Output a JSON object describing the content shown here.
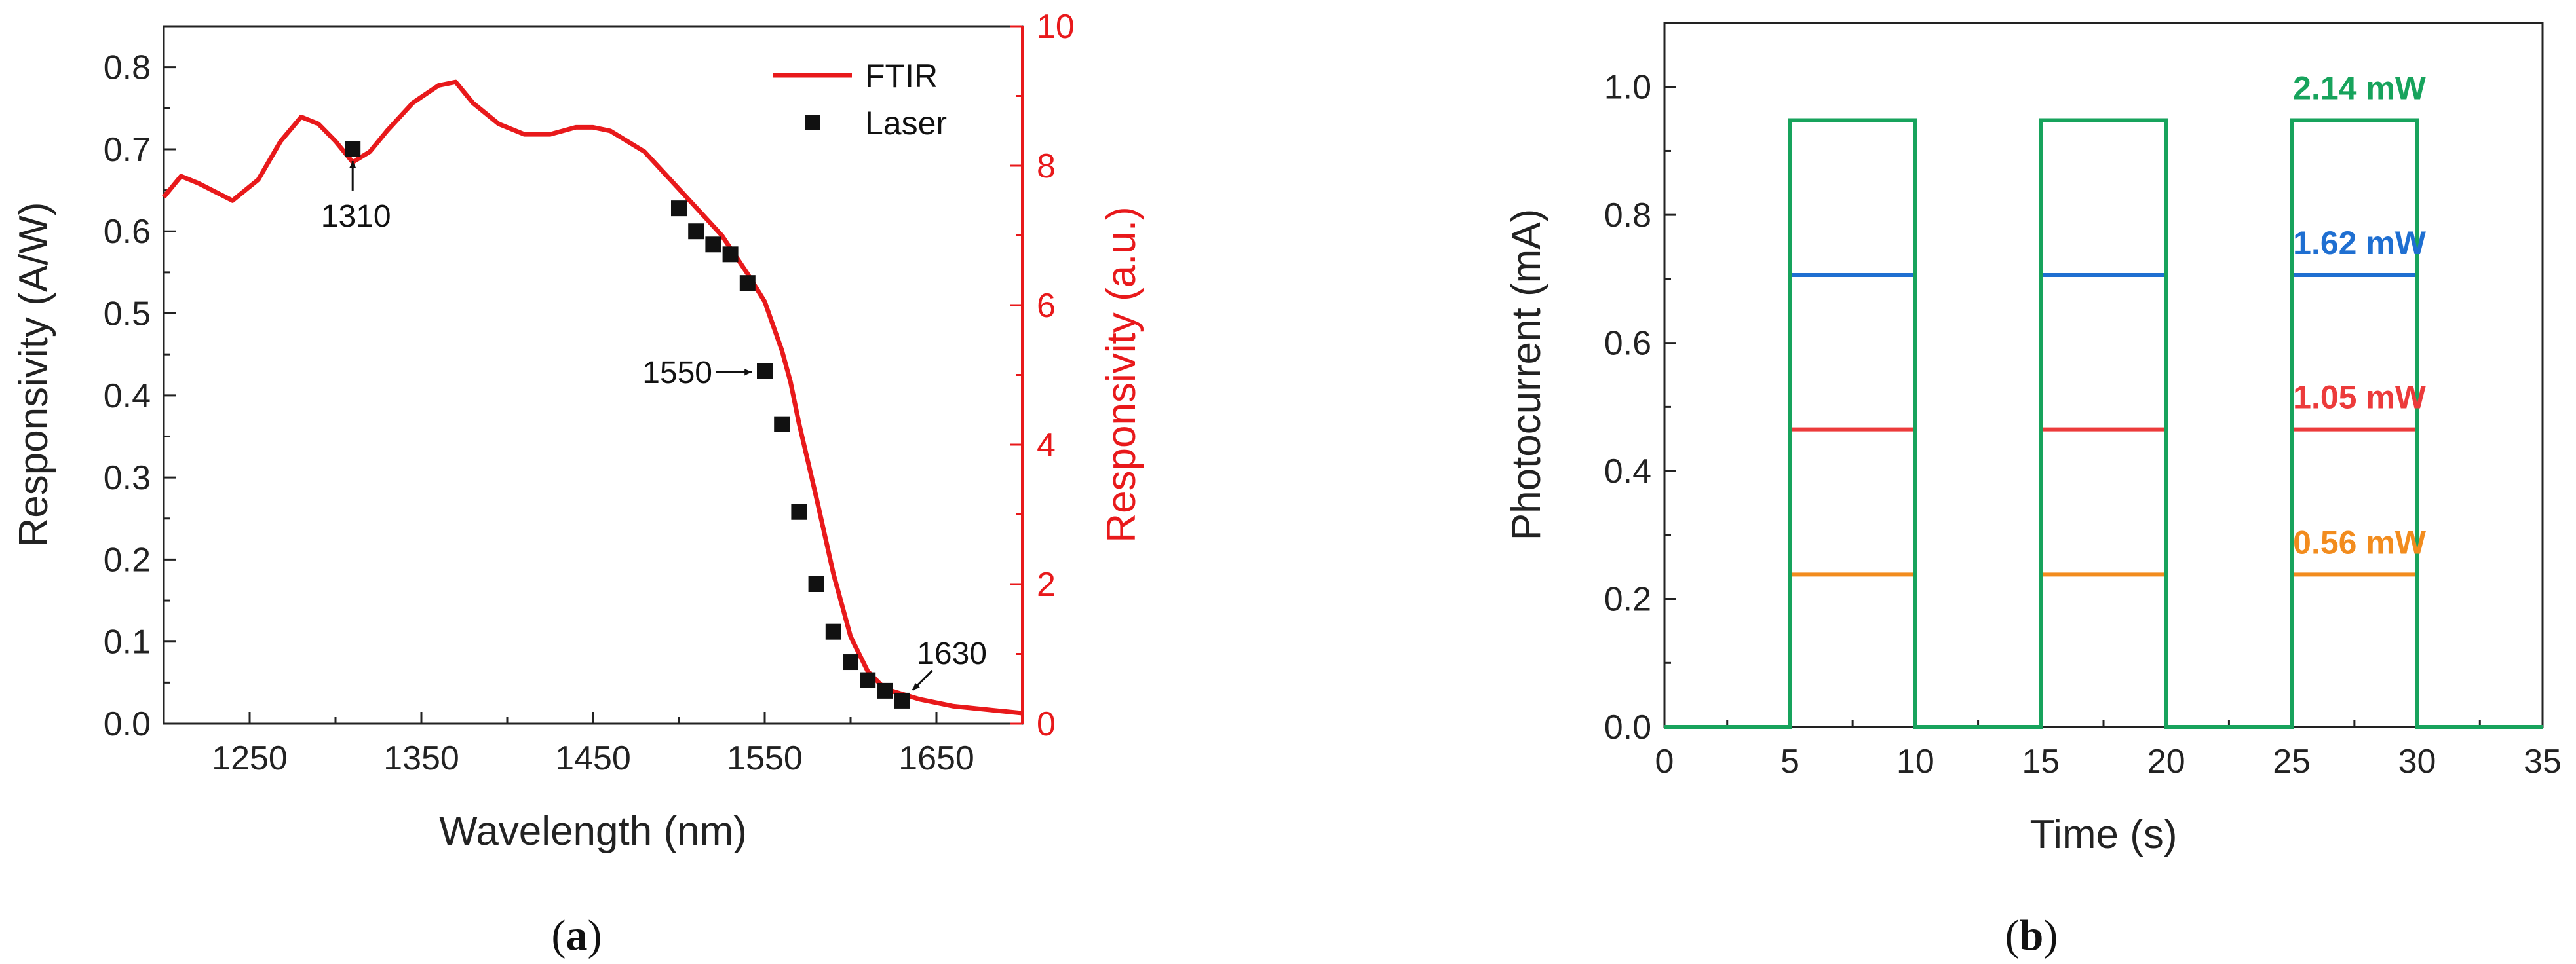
{
  "chart_data": [
    {
      "type": "line+scatter",
      "panel": "(a)",
      "panel_letter": "a",
      "xlabel": "Wavelength (nm)",
      "ylabel_left": "Responsivity (A/W)",
      "ylabel_right": "Responsivity (a.u.)",
      "xlim": [
        1200,
        1700
      ],
      "ylim_left": [
        0,
        0.85
      ],
      "ylim_right": [
        0,
        10
      ],
      "xticks": [
        1250,
        1350,
        1450,
        1550,
        1650
      ],
      "yticks_left": [
        0.0,
        0.1,
        0.2,
        0.3,
        0.4,
        0.5,
        0.6,
        0.7,
        0.8
      ],
      "yticks_right": [
        0,
        2,
        4,
        6,
        8,
        10
      ],
      "right_axis_color": "#e8191b",
      "series": [
        {
          "name": "FTIR",
          "kind": "line",
          "axis": "right",
          "color": "#e8191b",
          "x": [
            1200,
            1210,
            1220,
            1240,
            1255,
            1268,
            1280,
            1290,
            1300,
            1310,
            1320,
            1330,
            1345,
            1360,
            1370,
            1380,
            1395,
            1410,
            1425,
            1440,
            1450,
            1460,
            1470,
            1480,
            1495,
            1510,
            1525,
            1540,
            1550,
            1560,
            1565,
            1570,
            1580,
            1590,
            1600,
            1610,
            1620,
            1640,
            1660,
            1680,
            1700
          ],
          "y": [
            7.55,
            7.85,
            7.75,
            7.5,
            7.8,
            8.35,
            8.7,
            8.6,
            8.35,
            8.05,
            8.2,
            8.5,
            8.9,
            9.15,
            9.2,
            8.9,
            8.6,
            8.45,
            8.45,
            8.55,
            8.55,
            8.5,
            8.35,
            8.2,
            7.8,
            7.4,
            7.0,
            6.45,
            6.05,
            5.35,
            4.9,
            4.3,
            3.25,
            2.15,
            1.25,
            0.75,
            0.5,
            0.35,
            0.25,
            0.2,
            0.15
          ]
        },
        {
          "name": "Laser",
          "kind": "scatter",
          "axis": "left",
          "color": "#111111",
          "x": [
            1310,
            1500,
            1510,
            1520,
            1530,
            1540,
            1550,
            1560,
            1570,
            1580,
            1590,
            1600,
            1610,
            1620,
            1630
          ],
          "y": [
            0.7,
            0.628,
            0.6,
            0.584,
            0.572,
            0.537,
            0.43,
            0.365,
            0.258,
            0.17,
            0.112,
            0.075,
            0.053,
            0.04,
            0.028
          ]
        }
      ],
      "annotations": [
        {
          "text": "1310",
          "x": 1310,
          "y": 0.7
        },
        {
          "text": "1550",
          "x": 1550,
          "y": 0.43
        },
        {
          "text": "1630",
          "x": 1630,
          "y": 0.028
        }
      ],
      "legend": "top-right"
    },
    {
      "type": "line",
      "panel": "(b)",
      "panel_letter": "b",
      "xlabel": "Time (s)",
      "ylabel": "Photocurrent (mA)",
      "xlim": [
        0,
        35
      ],
      "ylim": [
        0,
        1.1
      ],
      "xticks": [
        0,
        5,
        10,
        15,
        20,
        25,
        30,
        35
      ],
      "yticks": [
        0.0,
        0.2,
        0.4,
        0.6,
        0.8,
        1.0
      ],
      "on_intervals": [
        [
          5,
          10
        ],
        [
          15,
          20
        ],
        [
          25,
          30
        ]
      ],
      "series": [
        {
          "name": "0.56 mW",
          "level": 0.238,
          "color": "#f28c1e"
        },
        {
          "name": "1.05 mW",
          "level": 0.465,
          "color": "#ec3b3b"
        },
        {
          "name": "1.62 mW",
          "level": 0.706,
          "color": "#1f6fd1"
        },
        {
          "name": "2.14 mW",
          "level": 0.948,
          "color": "#17a35c"
        }
      ]
    }
  ]
}
